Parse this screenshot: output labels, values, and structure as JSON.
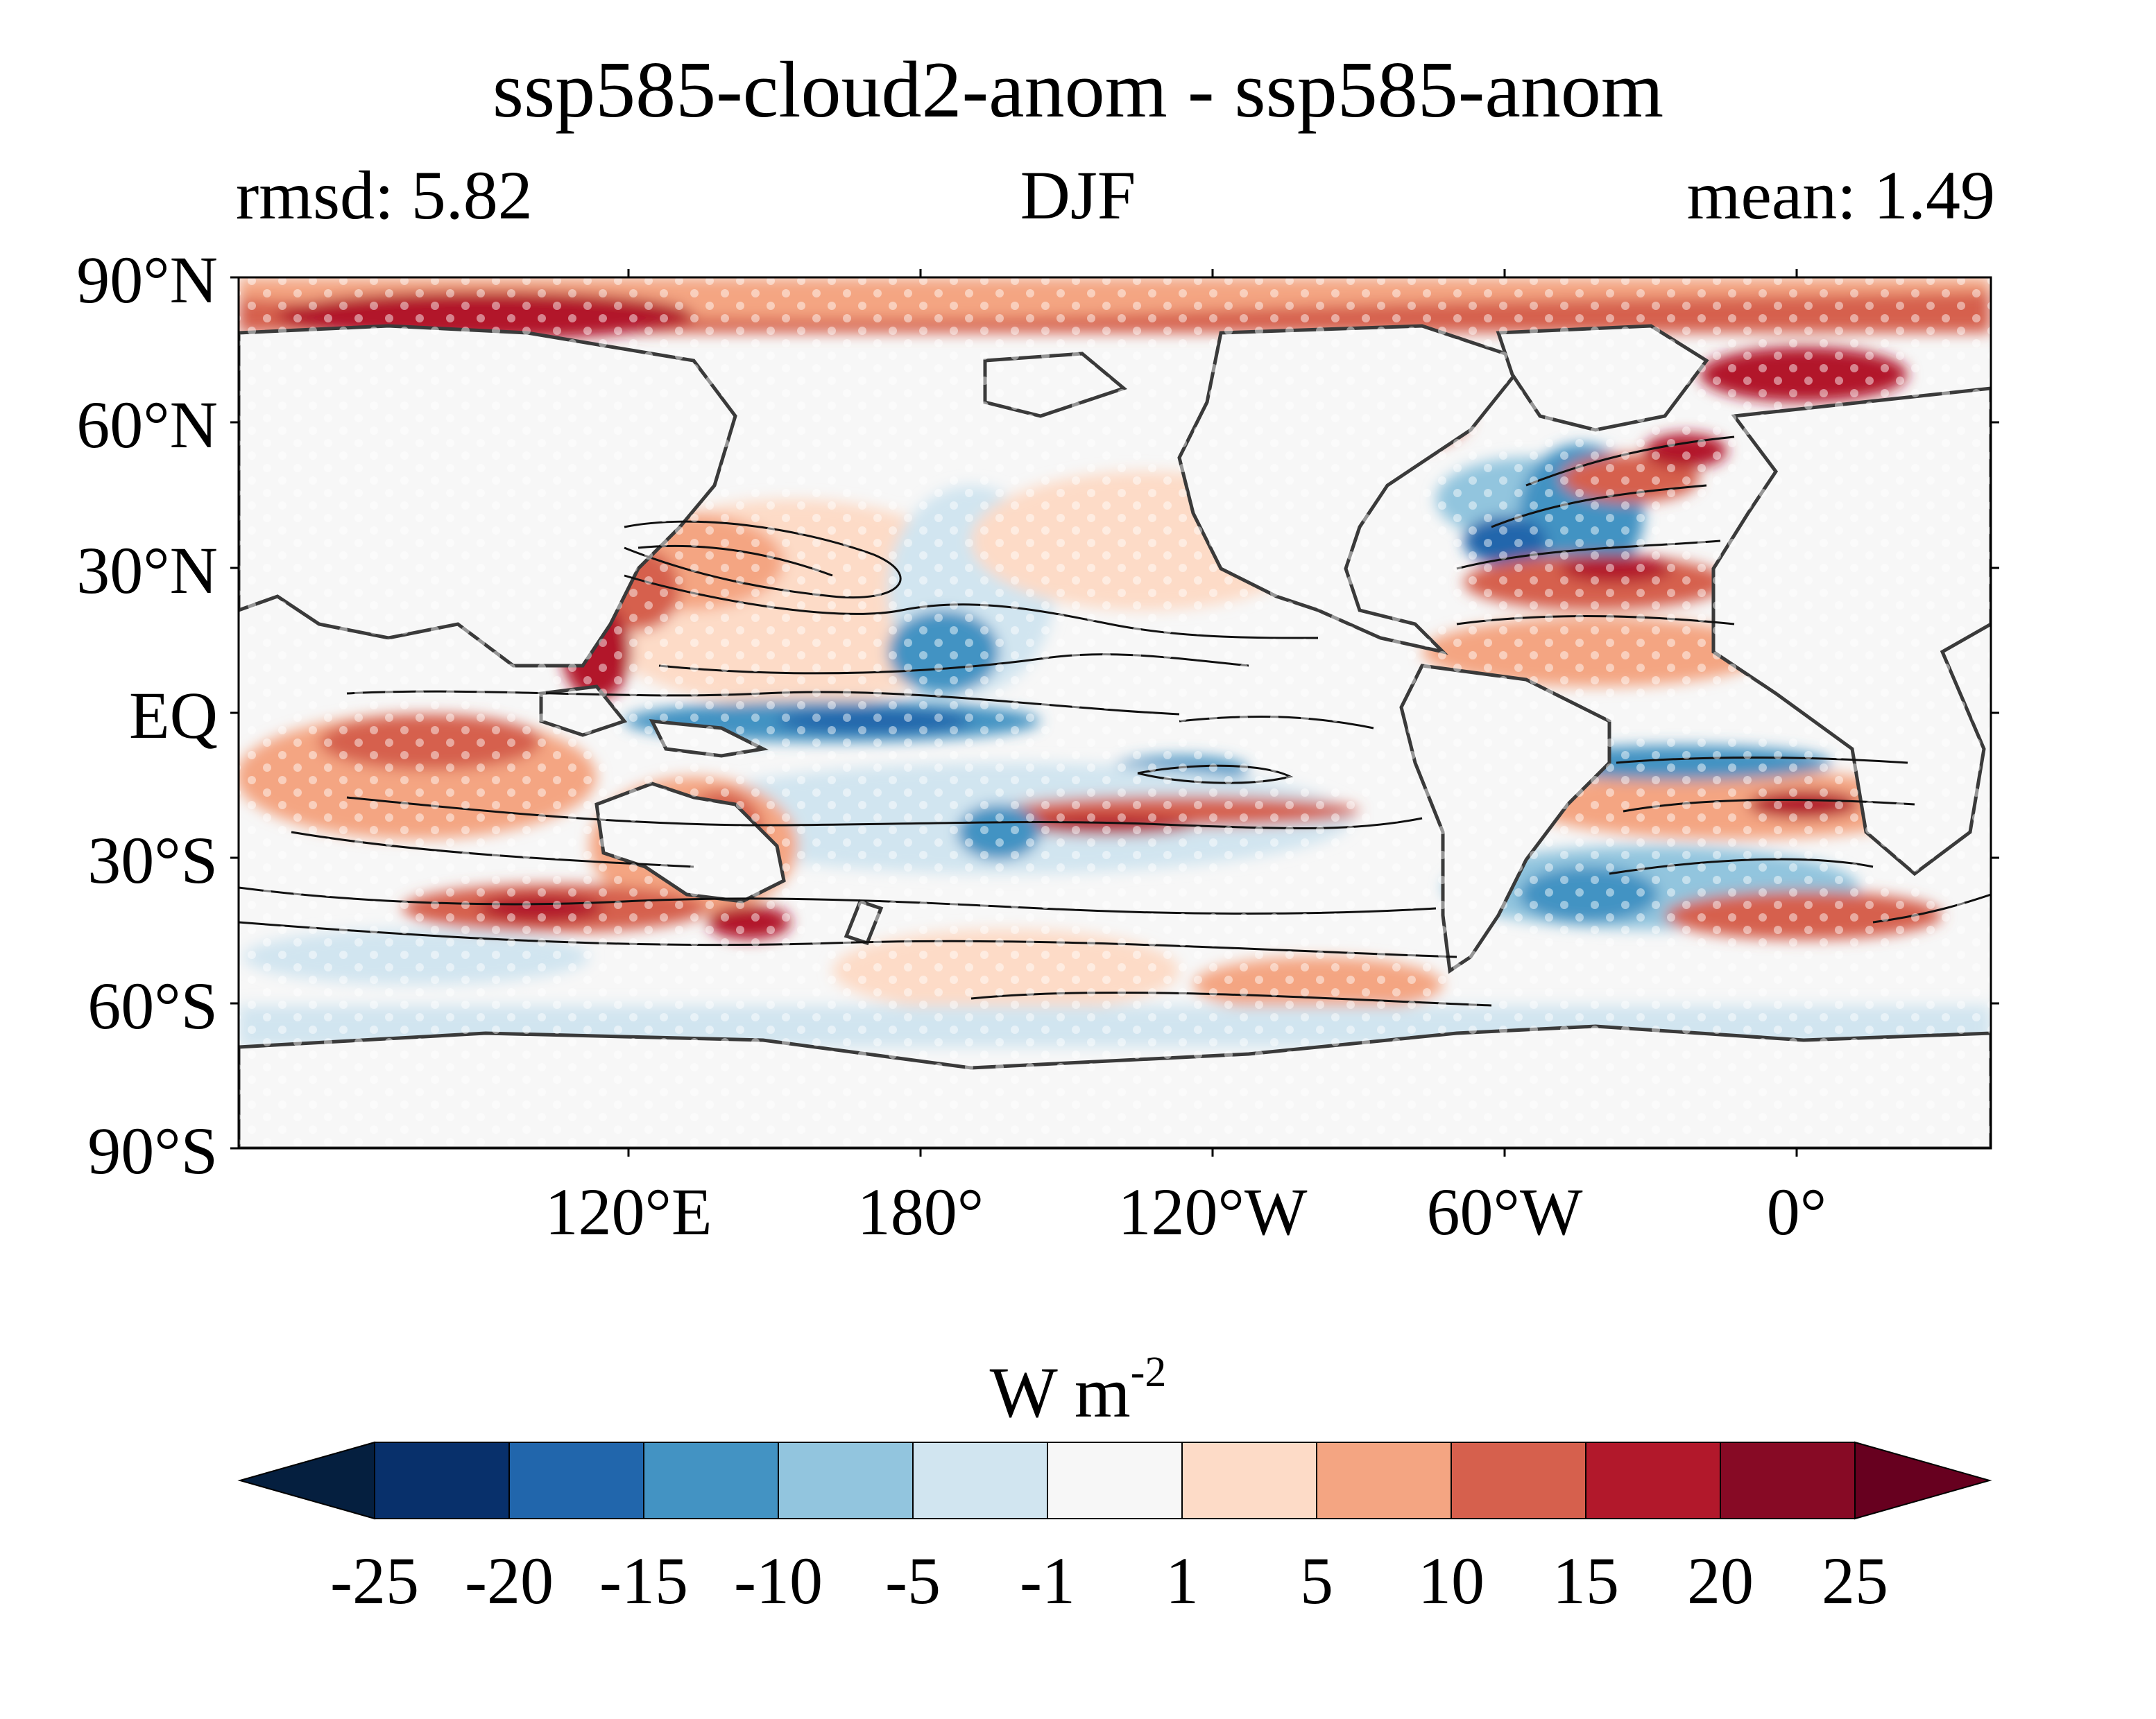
{
  "title": "ssp585-cloud2-anom - ssp585-anom",
  "subtitle_left": "rmsd: 5.82",
  "subtitle_center": "DJF",
  "subtitle_right": "mean: 1.49",
  "map": {
    "lat_labels": [
      "90°N",
      "60°N",
      "30°N",
      "EQ",
      "30°S",
      "60°S",
      "90°S"
    ],
    "lon_labels": [
      "120°E",
      "180°",
      "120°W",
      "60°W",
      "0°"
    ],
    "projection": "PlateCarree, central longitude ~ -150 (Pacific-centred)",
    "overlays": [
      "filled anomaly contours",
      "black line contours",
      "white stippling",
      "coastlines"
    ]
  },
  "colorbar": {
    "label_main": "W m",
    "label_exp": "-2",
    "ticks": [
      "-25",
      "-20",
      "-15",
      "-10",
      "-5",
      "-1",
      "1",
      "5",
      "10",
      "15",
      "20",
      "25"
    ],
    "colors": [
      "#08306b",
      "#2166ac",
      "#4393c3",
      "#92c5de",
      "#d1e5f0",
      "#f7f7f7",
      "#fddbc7",
      "#f4a582",
      "#d6604d",
      "#b2182b",
      "#870a25"
    ],
    "extend_low_color": "#051f3f",
    "extend_high_color": "#67001f"
  }
}
